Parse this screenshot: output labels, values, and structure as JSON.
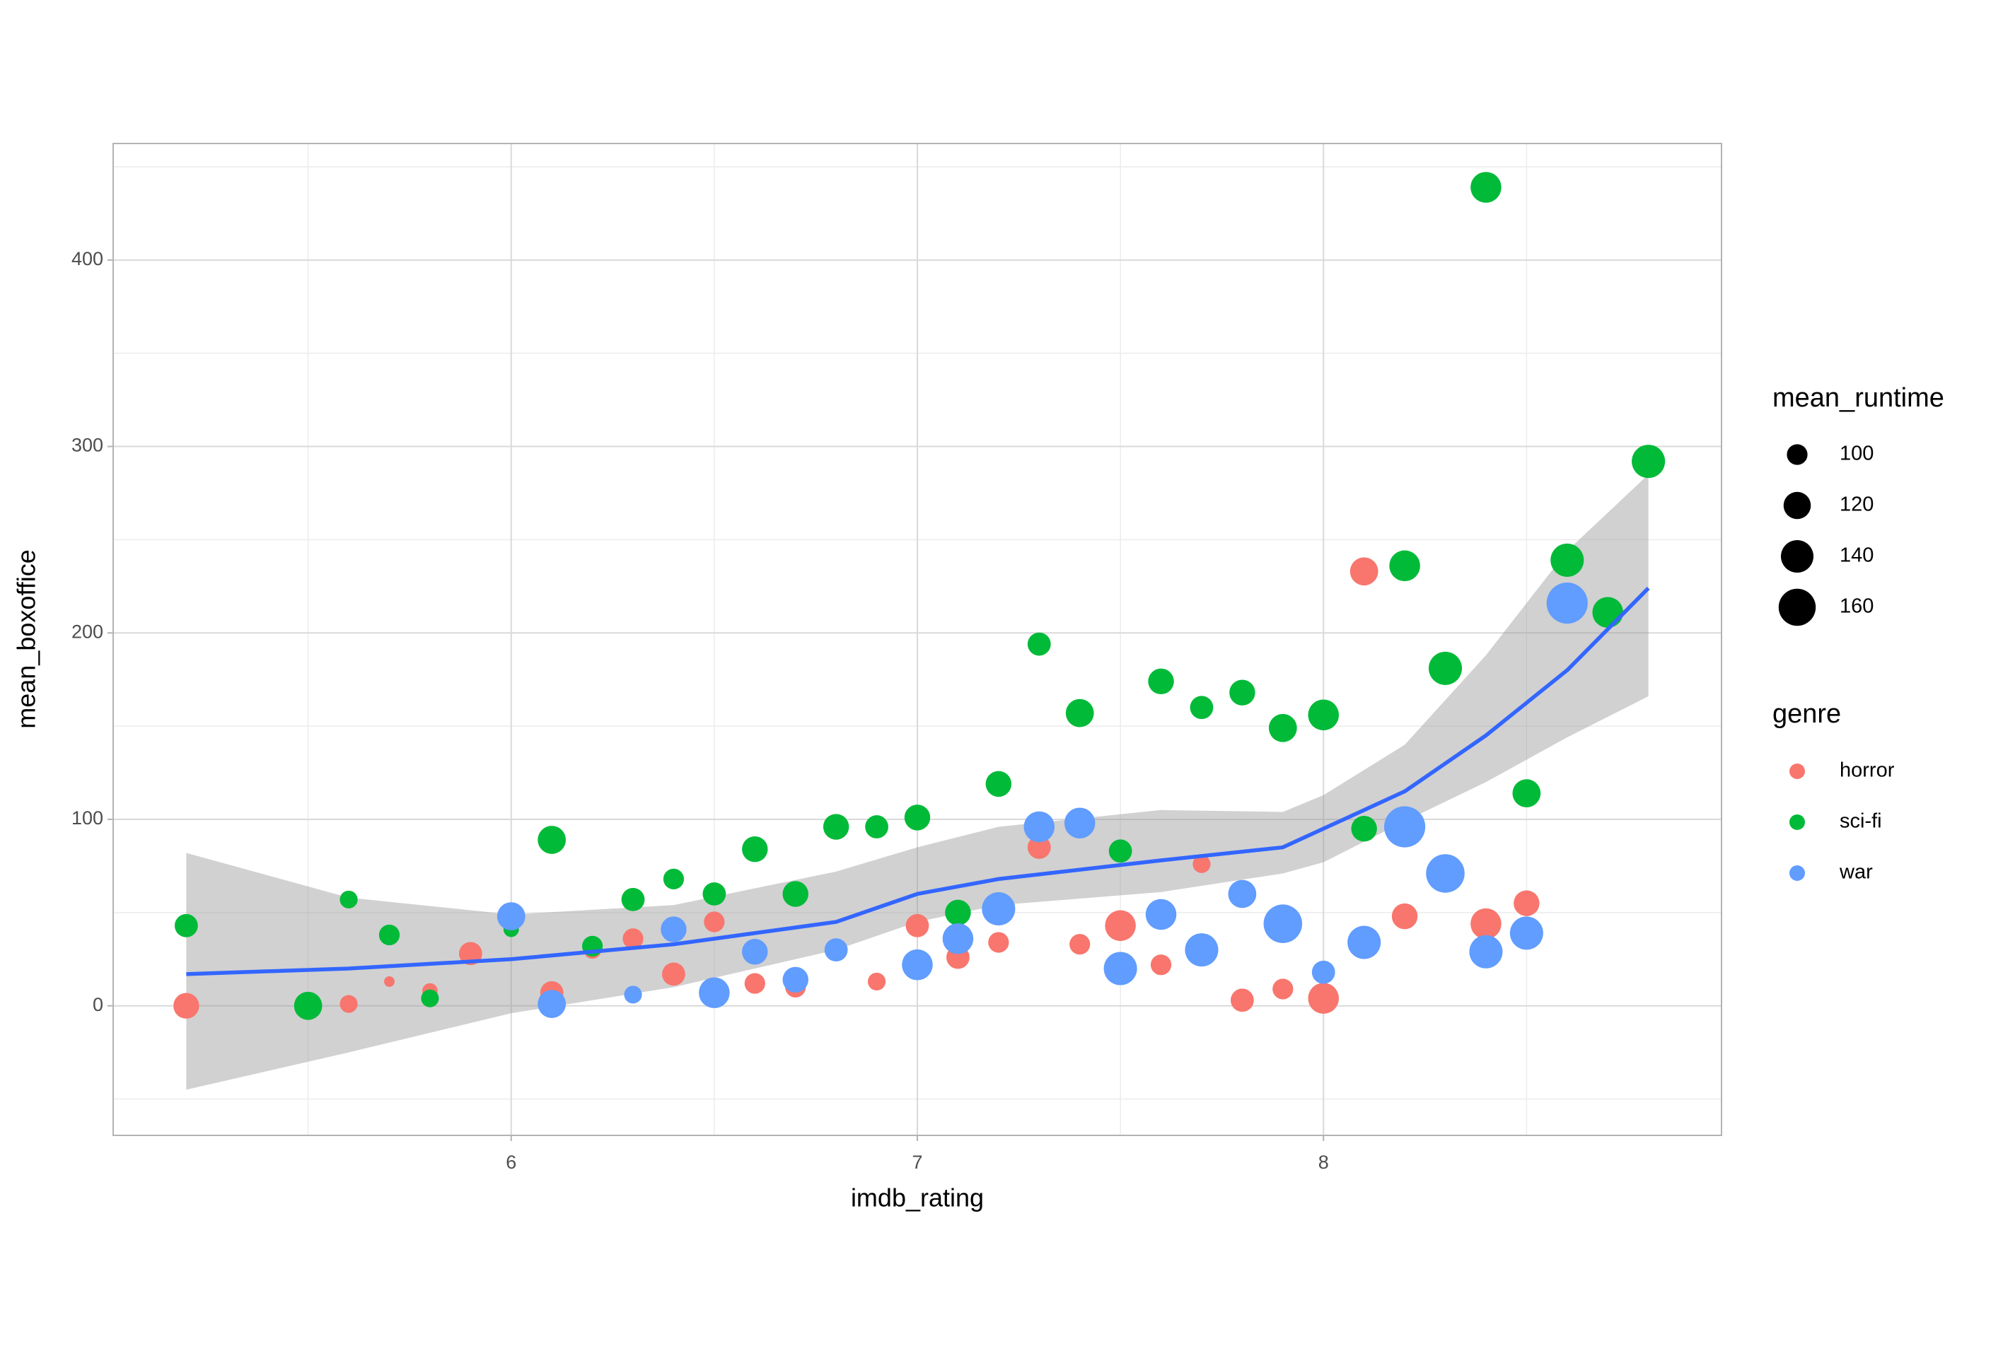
{
  "chart_data": {
    "type": "scatter",
    "x_label": "imdb_rating",
    "y_label": "mean_boxoffice",
    "xlim": [
      5.02,
      8.98
    ],
    "ylim": [
      -69.5,
      462.5
    ],
    "xticks": [
      6,
      7,
      8
    ],
    "yticks": [
      0,
      100,
      200,
      300,
      400
    ],
    "grid": true,
    "size_legend": {
      "title": "mean_runtime",
      "values": [
        100,
        120,
        140,
        160
      ]
    },
    "color_legend_title": "genre",
    "series": [
      {
        "name": "horror",
        "color": "#F8766D",
        "x": [
          5.2,
          5.6,
          5.7,
          5.8,
          5.9,
          6.1,
          6.2,
          6.3,
          6.4,
          6.5,
          6.6,
          6.7,
          6.8,
          6.9,
          7.0,
          7.1,
          7.2,
          7.3,
          7.4,
          7.5,
          7.6,
          7.7,
          7.8,
          7.9,
          8.0,
          8.1,
          8.2,
          8.4,
          8.5
        ],
        "values": [
          0,
          1,
          13,
          8,
          28,
          7,
          30,
          36,
          17,
          45,
          12,
          10,
          30,
          13,
          43,
          26,
          34,
          85,
          33,
          43,
          22,
          76,
          3,
          9,
          4,
          233,
          48,
          44,
          55
        ],
        "sizes": [
          115,
          93,
          80,
          88,
          107,
          107,
          93,
          100,
          107,
          100,
          100,
          100,
          93,
          93,
          107,
          107,
          100,
          107,
          100,
          133,
          100,
          93,
          107,
          100,
          133,
          123,
          115,
          133,
          115
        ]
      },
      {
        "name": "sci-fi",
        "color": "#00BA38",
        "x": [
          5.2,
          5.5,
          5.6,
          5.7,
          5.8,
          6.0,
          6.1,
          6.2,
          6.3,
          6.4,
          6.5,
          6.6,
          6.7,
          6.8,
          6.9,
          7.0,
          7.1,
          7.2,
          7.3,
          7.4,
          7.5,
          7.6,
          7.7,
          7.8,
          7.9,
          8.0,
          8.1,
          8.2,
          8.3,
          8.4,
          8.5,
          8.6,
          8.7,
          8.8
        ],
        "values": [
          43,
          0,
          57,
          38,
          4,
          41,
          89,
          32,
          57,
          68,
          60,
          84,
          60,
          96,
          96,
          101,
          50,
          119,
          194,
          157,
          83,
          174,
          160,
          168,
          149,
          156,
          95,
          236,
          181,
          439,
          114,
          239,
          211,
          292
        ],
        "sizes": [
          107,
          123,
          93,
          100,
          93,
          88,
          123,
          100,
          107,
          100,
          107,
          115,
          115,
          115,
          107,
          115,
          115,
          115,
          107,
          123,
          107,
          115,
          107,
          115,
          123,
          133,
          115,
          133,
          143,
          133,
          123,
          143,
          133,
          143
        ]
      },
      {
        "name": "war",
        "color": "#619CFF",
        "x": [
          6.0,
          6.1,
          6.3,
          6.4,
          6.5,
          6.6,
          6.7,
          6.8,
          7.0,
          7.1,
          7.2,
          7.3,
          7.4,
          7.5,
          7.6,
          7.7,
          7.8,
          7.9,
          8.0,
          8.1,
          8.2,
          8.3,
          8.4,
          8.5,
          8.6
        ],
        "values": [
          48,
          1,
          6,
          41,
          7,
          29,
          14,
          30,
          22,
          36,
          52,
          96,
          98,
          20,
          49,
          30,
          60,
          44,
          18,
          34,
          96,
          71,
          29,
          39,
          216
        ],
        "sizes": [
          123,
          123,
          93,
          115,
          133,
          115,
          115,
          107,
          133,
          133,
          143,
          133,
          133,
          143,
          133,
          143,
          123,
          167,
          107,
          143,
          180,
          167,
          143,
          143,
          180
        ]
      }
    ],
    "smooth": {
      "color": "#3366FF",
      "x": [
        5.2,
        5.6,
        6.0,
        6.4,
        6.8,
        7.0,
        7.2,
        7.6,
        7.9,
        8.0,
        8.2,
        8.4,
        8.6,
        8.8
      ],
      "values": [
        17,
        20,
        25,
        33,
        45,
        60,
        68,
        78,
        85,
        95,
        115,
        145,
        180,
        224
      ],
      "ymin": [
        -45,
        -25,
        -4,
        10,
        30,
        45,
        54,
        61,
        71,
        77,
        99,
        120,
        144,
        166
      ],
      "ymax": [
        82,
        58,
        49,
        54,
        72,
        85,
        96,
        105,
        104,
        113,
        140,
        188,
        244,
        285
      ]
    }
  }
}
